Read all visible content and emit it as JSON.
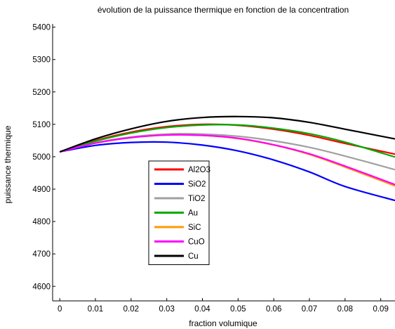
{
  "chart_data": {
    "type": "line",
    "title": "évolution de la puissance thermique en fonction de la concentration",
    "xlabel": "fraction volumique",
    "ylabel": "puissance thermique",
    "xlim": [
      -0.002,
      0.094
    ],
    "ylim": [
      4555,
      5410
    ],
    "xticks": [
      0,
      0.01,
      0.02,
      0.03,
      0.04,
      0.05,
      0.06,
      0.07,
      0.08,
      0.09
    ],
    "xtick_labels": [
      "0",
      "0.01",
      "0.02",
      "0.03",
      "0.04",
      "0.05",
      "0.06",
      "0.07",
      "0.08",
      "0.09"
    ],
    "yticks": [
      4600,
      4700,
      4800,
      4900,
      5000,
      5100,
      5200,
      5300,
      5400
    ],
    "ytick_labels": [
      "4600",
      "4700",
      "4800",
      "4900",
      "5000",
      "5100",
      "5200",
      "5300",
      "5400"
    ],
    "grid": false,
    "legend_position": "lower-left inside",
    "series": [
      {
        "name": "Al2O3",
        "color": "#ff0000",
        "x": [
          0,
          0.01,
          0.02,
          0.03,
          0.04,
          0.05,
          0.06,
          0.07,
          0.08,
          0.094
        ],
        "y": [
          5015,
          5050,
          5076,
          5093,
          5100,
          5097,
          5085,
          5066,
          5041,
          5008
        ]
      },
      {
        "name": "SiO2",
        "color": "#0000ff",
        "x": [
          0,
          0.01,
          0.02,
          0.03,
          0.04,
          0.05,
          0.06,
          0.07,
          0.08,
          0.094
        ],
        "y": [
          5015,
          5035,
          5044,
          5045,
          5036,
          5018,
          4990,
          4953,
          4908,
          4865
        ]
      },
      {
        "name": "TiO2",
        "color": "#a0a0a0",
        "x": [
          0,
          0.01,
          0.02,
          0.03,
          0.04,
          0.05,
          0.06,
          0.07,
          0.08,
          0.094
        ],
        "y": [
          5015,
          5043,
          5061,
          5070,
          5070,
          5063,
          5049,
          5029,
          5002,
          4960
        ]
      },
      {
        "name": "Au",
        "color": "#00aa00",
        "x": [
          0,
          0.01,
          0.02,
          0.03,
          0.04,
          0.05,
          0.06,
          0.07,
          0.08,
          0.094
        ],
        "y": [
          5015,
          5048,
          5073,
          5090,
          5098,
          5098,
          5088,
          5071,
          5045,
          4999
        ]
      },
      {
        "name": "SiC",
        "color": "#ff9900",
        "x": [
          0,
          0.01,
          0.02,
          0.03,
          0.04,
          0.05,
          0.06,
          0.07,
          0.08,
          0.094
        ],
        "y": [
          5015,
          5042,
          5059,
          5067,
          5066,
          5056,
          5036,
          5007,
          4968,
          4910
        ]
      },
      {
        "name": "CuO",
        "color": "#ff00ff",
        "x": [
          0,
          0.01,
          0.02,
          0.03,
          0.04,
          0.05,
          0.06,
          0.07,
          0.08,
          0.094
        ],
        "y": [
          5015,
          5042,
          5059,
          5067,
          5066,
          5057,
          5037,
          5009,
          4971,
          4914
        ]
      },
      {
        "name": "Cu",
        "color": "#000000",
        "x": [
          0,
          0.01,
          0.02,
          0.03,
          0.04,
          0.05,
          0.06,
          0.07,
          0.08,
          0.094
        ],
        "y": [
          5015,
          5055,
          5086,
          5109,
          5121,
          5124,
          5120,
          5106,
          5085,
          5055
        ]
      }
    ]
  }
}
